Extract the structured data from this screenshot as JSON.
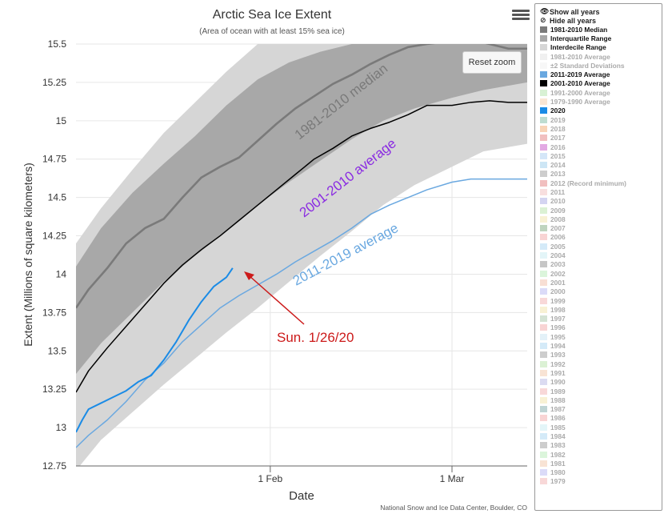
{
  "chart_data": {
    "type": "line",
    "title": "Arctic Sea Ice Extent",
    "subtitle": "(Area of ocean with at least 15% sea ice)",
    "xlabel": "Date",
    "ylabel": "Extent (Millions of square kilometers)",
    "ylim": [
      12.75,
      15.5
    ],
    "yticks": [
      "12.75",
      "13",
      "13.25",
      "13.5",
      "13.75",
      "14",
      "14.25",
      "14.5",
      "14.75",
      "15",
      "15.25",
      "15.5"
    ],
    "xlim": [
      "2020-01-01",
      "2020-03-13"
    ],
    "xticks": [
      {
        "date": "2020-02-01",
        "label": "1 Feb"
      },
      {
        "date": "2020-03-01",
        "label": "1 Mar"
      }
    ],
    "grid": true,
    "legend": "right",
    "bands": [
      {
        "name": "Interdecile Range",
        "color": "#d6d6d6",
        "x": [
          "2020-01-01",
          "2020-01-05",
          "2020-01-10",
          "2020-01-15",
          "2020-01-20",
          "2020-01-25",
          "2020-01-30",
          "2020-02-04",
          "2020-02-09",
          "2020-02-14",
          "2020-02-19",
          "2020-02-24",
          "2020-03-01",
          "2020-03-06",
          "2020-03-13"
        ],
        "upper": [
          14.2,
          14.43,
          14.68,
          14.92,
          15.12,
          15.32,
          15.5,
          15.62,
          15.72,
          15.8,
          15.86,
          15.9,
          15.92,
          15.94,
          15.95
        ],
        "lower": [
          12.72,
          12.92,
          13.1,
          13.28,
          13.45,
          13.62,
          13.78,
          13.95,
          14.12,
          14.28,
          14.45,
          14.58,
          14.7,
          14.8,
          14.85
        ]
      },
      {
        "name": "Interquartile Range",
        "color": "#a8a8a8",
        "x": [
          "2020-01-01",
          "2020-01-05",
          "2020-01-10",
          "2020-01-15",
          "2020-01-20",
          "2020-01-25",
          "2020-01-30",
          "2020-02-04",
          "2020-02-09",
          "2020-02-14",
          "2020-02-19",
          "2020-02-24",
          "2020-03-01",
          "2020-03-06",
          "2020-03-13"
        ],
        "upper": [
          14.05,
          14.3,
          14.53,
          14.72,
          14.9,
          15.1,
          15.27,
          15.38,
          15.45,
          15.5,
          15.55,
          15.58,
          15.6,
          15.62,
          15.62
        ],
        "lower": [
          13.35,
          13.55,
          13.75,
          13.95,
          14.12,
          14.28,
          14.45,
          14.6,
          14.74,
          14.88,
          15.0,
          15.08,
          15.15,
          15.2,
          15.25
        ]
      }
    ],
    "series": [
      {
        "name": "1981-2010 Median",
        "color": "#7a7a7a",
        "x": [
          "2020-01-01",
          "2020-01-03",
          "2020-01-06",
          "2020-01-09",
          "2020-01-12",
          "2020-01-15",
          "2020-01-18",
          "2020-01-21",
          "2020-01-24",
          "2020-01-27",
          "2020-01-30",
          "2020-02-02",
          "2020-02-05",
          "2020-02-08",
          "2020-02-11",
          "2020-02-14",
          "2020-02-17",
          "2020-02-20",
          "2020-02-23",
          "2020-02-26",
          "2020-03-01",
          "2020-03-04",
          "2020-03-07",
          "2020-03-10",
          "2020-03-13"
        ],
        "y": [
          13.78,
          13.9,
          14.04,
          14.2,
          14.3,
          14.36,
          14.5,
          14.63,
          14.7,
          14.76,
          14.87,
          14.98,
          15.08,
          15.16,
          15.24,
          15.3,
          15.37,
          15.43,
          15.48,
          15.5,
          15.52,
          15.53,
          15.5,
          15.47,
          15.47
        ]
      },
      {
        "name": "2001-2010 Average",
        "color": "#000000",
        "x": [
          "2020-01-01",
          "2020-01-03",
          "2020-01-06",
          "2020-01-09",
          "2020-01-12",
          "2020-01-15",
          "2020-01-18",
          "2020-01-21",
          "2020-01-24",
          "2020-01-27",
          "2020-01-30",
          "2020-02-02",
          "2020-02-05",
          "2020-02-08",
          "2020-02-11",
          "2020-02-14",
          "2020-02-17",
          "2020-02-20",
          "2020-02-23",
          "2020-02-26",
          "2020-03-01",
          "2020-03-04",
          "2020-03-07",
          "2020-03-10",
          "2020-03-13"
        ],
        "y": [
          13.23,
          13.37,
          13.52,
          13.66,
          13.8,
          13.94,
          14.06,
          14.16,
          14.25,
          14.35,
          14.45,
          14.55,
          14.65,
          14.75,
          14.82,
          14.9,
          14.95,
          14.99,
          15.04,
          15.1,
          15.1,
          15.12,
          15.13,
          15.12,
          15.12
        ]
      },
      {
        "name": "2011-2019 Average",
        "color": "#6aa8e0",
        "x": [
          "2020-01-01",
          "2020-01-03",
          "2020-01-06",
          "2020-01-09",
          "2020-01-12",
          "2020-01-15",
          "2020-01-18",
          "2020-01-21",
          "2020-01-24",
          "2020-01-27",
          "2020-01-30",
          "2020-02-02",
          "2020-02-05",
          "2020-02-08",
          "2020-02-11",
          "2020-02-14",
          "2020-02-17",
          "2020-02-20",
          "2020-02-23",
          "2020-02-26",
          "2020-03-01",
          "2020-03-04",
          "2020-03-07",
          "2020-03-10",
          "2020-03-13"
        ],
        "y": [
          12.87,
          12.95,
          13.05,
          13.17,
          13.31,
          13.42,
          13.56,
          13.67,
          13.78,
          13.86,
          13.93,
          14.0,
          14.08,
          14.15,
          14.22,
          14.3,
          14.39,
          14.45,
          14.5,
          14.55,
          14.6,
          14.62,
          14.62,
          14.62,
          14.62
        ]
      },
      {
        "name": "2020",
        "color": "#1a8be6",
        "x": [
          "2020-01-01",
          "2020-01-02",
          "2020-01-03",
          "2020-01-05",
          "2020-01-07",
          "2020-01-09",
          "2020-01-11",
          "2020-01-13",
          "2020-01-15",
          "2020-01-17",
          "2020-01-19",
          "2020-01-21",
          "2020-01-23",
          "2020-01-25",
          "2020-01-26"
        ],
        "y": [
          12.97,
          13.05,
          13.12,
          13.16,
          13.2,
          13.24,
          13.3,
          13.34,
          13.44,
          13.56,
          13.7,
          13.82,
          13.92,
          13.98,
          14.04
        ]
      }
    ],
    "annotations": {
      "median_label": "1981-2010 median",
      "avg2001_label": "2001-2010 average",
      "avg2011_label": "2011-2019 average",
      "callout": "Sun. 1/26/20"
    },
    "credit": "National Snow and Ice Data Center, Boulder, CO"
  },
  "ui": {
    "reset_zoom": "Reset zoom",
    "menu_icon": "hamburger-menu-icon"
  },
  "legend": {
    "show_all": "Show all years",
    "hide_all": "Hide all years",
    "show_icon": "eye-icon",
    "hide_icon": "eye-slash-icon",
    "items": [
      {
        "label": "1981-2010 Median",
        "color": "#7a7a7a",
        "on": true
      },
      {
        "label": "Interquartile Range",
        "color": "#a8a8a8",
        "on": true
      },
      {
        "label": "Interdecile Range",
        "color": "#d6d6d6",
        "on": true
      },
      {
        "label": "1981-2010 Average",
        "color": "#dddddd",
        "on": false
      },
      {
        "label": "±2 Standard Deviations",
        "color": "#eeeeee",
        "on": false
      },
      {
        "label": "2011-2019 Average",
        "color": "#6aa8e0",
        "on": true
      },
      {
        "label": "2001-2010 Average",
        "color": "#000000",
        "on": true
      },
      {
        "label": "1991-2000 Average",
        "color": "#a8e0a0",
        "on": false
      },
      {
        "label": "1979-1990 Average",
        "color": "#f5c8a0",
        "on": false
      },
      {
        "label": "2020",
        "color": "#1a8be6",
        "on": true
      },
      {
        "label": "2019",
        "color": "#6fb39a",
        "on": false
      },
      {
        "label": "2018",
        "color": "#f0a060",
        "on": false
      },
      {
        "label": "2017",
        "color": "#e07070",
        "on": false
      },
      {
        "label": "2016",
        "color": "#c040c0",
        "on": false
      },
      {
        "label": "2015",
        "color": "#a0c8f0",
        "on": false
      },
      {
        "label": "2014",
        "color": "#90c8e8",
        "on": false
      },
      {
        "label": "2013",
        "color": "#909090",
        "on": false
      },
      {
        "label": "2012 (Record minimum)",
        "color": "#e07070",
        "on": false
      },
      {
        "label": "2011",
        "color": "#f0b8b8",
        "on": false
      },
      {
        "label": "2010",
        "color": "#a0a0e0",
        "on": false
      },
      {
        "label": "2009",
        "color": "#b0e0a0",
        "on": false
      },
      {
        "label": "2008",
        "color": "#f0e0a0",
        "on": false
      },
      {
        "label": "2007",
        "color": "#70a070",
        "on": false
      },
      {
        "label": "2006",
        "color": "#f0a0a0",
        "on": false
      },
      {
        "label": "2005",
        "color": "#a0d0f0",
        "on": false
      },
      {
        "label": "2004",
        "color": "#c0e8f0",
        "on": false
      },
      {
        "label": "2003",
        "color": "#808080",
        "on": false
      },
      {
        "label": "2002",
        "color": "#b0e8b0",
        "on": false
      },
      {
        "label": "2001",
        "color": "#f0b8a0",
        "on": false
      },
      {
        "label": "2000",
        "color": "#b0b0f0",
        "on": false
      },
      {
        "label": "1999",
        "color": "#f0a8a8",
        "on": false
      },
      {
        "label": "1998",
        "color": "#f0e0a0",
        "on": false
      },
      {
        "label": "1997",
        "color": "#a0c0a0",
        "on": false
      },
      {
        "label": "1996",
        "color": "#f0a0a0",
        "on": false
      },
      {
        "label": "1995",
        "color": "#c0e0f0",
        "on": false
      },
      {
        "label": "1994",
        "color": "#a0d0f0",
        "on": false
      },
      {
        "label": "1993",
        "color": "#909090",
        "on": false
      },
      {
        "label": "1992",
        "color": "#b0e0a0",
        "on": false
      },
      {
        "label": "1991",
        "color": "#f0c0a0",
        "on": false
      },
      {
        "label": "1990",
        "color": "#b0b0e0",
        "on": false
      },
      {
        "label": "1989",
        "color": "#f0a8a8",
        "on": false
      },
      {
        "label": "1988",
        "color": "#f0e0a0",
        "on": false
      },
      {
        "label": "1987",
        "color": "#70a0a0",
        "on": false
      },
      {
        "label": "1986",
        "color": "#f0a0a0",
        "on": false
      },
      {
        "label": "1985",
        "color": "#c0e8f0",
        "on": false
      },
      {
        "label": "1984",
        "color": "#a0d0f0",
        "on": false
      },
      {
        "label": "1983",
        "color": "#909090",
        "on": false
      },
      {
        "label": "1982",
        "color": "#b0e8b0",
        "on": false
      },
      {
        "label": "1981",
        "color": "#f0c0a0",
        "on": false
      },
      {
        "label": "1980",
        "color": "#b0b0f0",
        "on": false
      },
      {
        "label": "1979",
        "color": "#f0a8a8",
        "on": false
      }
    ]
  }
}
